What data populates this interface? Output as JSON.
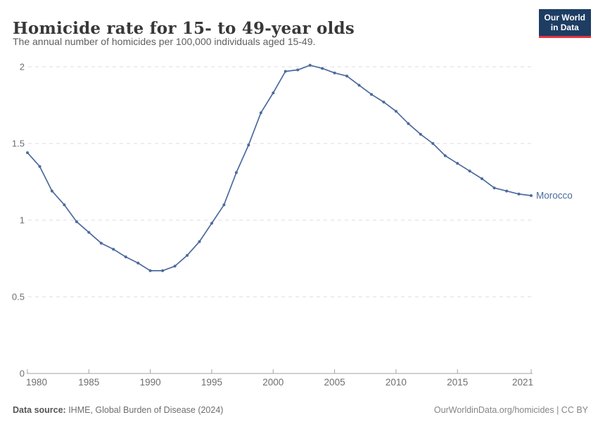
{
  "header": {
    "title": "Homicide rate for 15- to 49-year olds",
    "subtitle": "The annual number of homicides per 100,000 individuals aged 15-49."
  },
  "logo": {
    "line1": "Our World",
    "line2": "in Data",
    "bg": "#1d3d63",
    "accent": "#e5333f"
  },
  "chart_data": {
    "type": "line",
    "title": "Homicide rate for 15- to 49-year olds",
    "xlabel": "",
    "ylabel": "",
    "xlim": [
      1980,
      2021
    ],
    "ylim": [
      0,
      2
    ],
    "grid": "horizontal-dashed",
    "legend_position": "end-of-line-label",
    "x_ticks": [
      1980,
      1985,
      1990,
      1995,
      2000,
      2005,
      2010,
      2015,
      2021
    ],
    "y_ticks": [
      0,
      0.5,
      1,
      1.5,
      2
    ],
    "y_tick_labels": [
      "0",
      "0.5",
      "1",
      "1.5",
      "2"
    ],
    "x": [
      1980,
      1981,
      1982,
      1983,
      1984,
      1985,
      1986,
      1987,
      1988,
      1989,
      1990,
      1991,
      1992,
      1993,
      1994,
      1995,
      1996,
      1997,
      1998,
      1999,
      2000,
      2001,
      2002,
      2003,
      2004,
      2005,
      2006,
      2007,
      2008,
      2009,
      2010,
      2011,
      2012,
      2013,
      2014,
      2015,
      2016,
      2017,
      2018,
      2019,
      2020,
      2021
    ],
    "series": [
      {
        "name": "Morocco",
        "color": "#4C6A9C",
        "values": [
          1.44,
          1.35,
          1.19,
          1.1,
          0.99,
          0.92,
          0.85,
          0.81,
          0.76,
          0.72,
          0.67,
          0.67,
          0.7,
          0.77,
          0.86,
          0.98,
          1.1,
          1.31,
          1.49,
          1.7,
          1.83,
          1.97,
          1.98,
          2.01,
          1.99,
          1.96,
          1.94,
          1.88,
          1.82,
          1.77,
          1.71,
          1.63,
          1.56,
          1.5,
          1.42,
          1.37,
          1.32,
          1.27,
          1.21,
          1.19,
          1.17,
          1.16
        ]
      }
    ],
    "colors": {
      "grid": "#dedede",
      "axis": "#a3a3a3",
      "tick_label": "#6e6e6e"
    }
  },
  "footer": {
    "source_label": "Data source:",
    "source_value": " IHME, Global Burden of Disease (2024)",
    "right": "OurWorldinData.org/homicides | CC BY"
  }
}
